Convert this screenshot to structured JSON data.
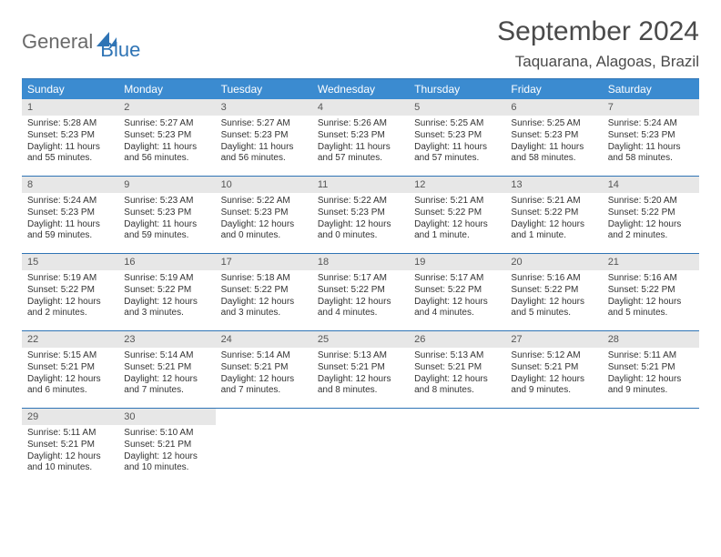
{
  "logo": {
    "word1": "General",
    "word2": "Blue"
  },
  "title": "September 2024",
  "location": "Taquarana, Alagoas, Brazil",
  "colors": {
    "header_bg": "#3b8bd0",
    "border": "#2f74b5",
    "daynum_bg": "#e7e7e7",
    "text": "#333333",
    "logo_gray": "#6a6a6a",
    "logo_blue": "#2f74b5"
  },
  "typography": {
    "title_fontsize": 30,
    "location_fontsize": 17,
    "dow_fontsize": 12,
    "cell_fontsize": 10
  },
  "days_of_week": [
    "Sunday",
    "Monday",
    "Tuesday",
    "Wednesday",
    "Thursday",
    "Friday",
    "Saturday"
  ],
  "weeks": [
    [
      {
        "n": "1",
        "sr": "Sunrise: 5:28 AM",
        "ss": "Sunset: 5:23 PM",
        "d1": "Daylight: 11 hours",
        "d2": "and 55 minutes."
      },
      {
        "n": "2",
        "sr": "Sunrise: 5:27 AM",
        "ss": "Sunset: 5:23 PM",
        "d1": "Daylight: 11 hours",
        "d2": "and 56 minutes."
      },
      {
        "n": "3",
        "sr": "Sunrise: 5:27 AM",
        "ss": "Sunset: 5:23 PM",
        "d1": "Daylight: 11 hours",
        "d2": "and 56 minutes."
      },
      {
        "n": "4",
        "sr": "Sunrise: 5:26 AM",
        "ss": "Sunset: 5:23 PM",
        "d1": "Daylight: 11 hours",
        "d2": "and 57 minutes."
      },
      {
        "n": "5",
        "sr": "Sunrise: 5:25 AM",
        "ss": "Sunset: 5:23 PM",
        "d1": "Daylight: 11 hours",
        "d2": "and 57 minutes."
      },
      {
        "n": "6",
        "sr": "Sunrise: 5:25 AM",
        "ss": "Sunset: 5:23 PM",
        "d1": "Daylight: 11 hours",
        "d2": "and 58 minutes."
      },
      {
        "n": "7",
        "sr": "Sunrise: 5:24 AM",
        "ss": "Sunset: 5:23 PM",
        "d1": "Daylight: 11 hours",
        "d2": "and 58 minutes."
      }
    ],
    [
      {
        "n": "8",
        "sr": "Sunrise: 5:24 AM",
        "ss": "Sunset: 5:23 PM",
        "d1": "Daylight: 11 hours",
        "d2": "and 59 minutes."
      },
      {
        "n": "9",
        "sr": "Sunrise: 5:23 AM",
        "ss": "Sunset: 5:23 PM",
        "d1": "Daylight: 11 hours",
        "d2": "and 59 minutes."
      },
      {
        "n": "10",
        "sr": "Sunrise: 5:22 AM",
        "ss": "Sunset: 5:23 PM",
        "d1": "Daylight: 12 hours",
        "d2": "and 0 minutes."
      },
      {
        "n": "11",
        "sr": "Sunrise: 5:22 AM",
        "ss": "Sunset: 5:23 PM",
        "d1": "Daylight: 12 hours",
        "d2": "and 0 minutes."
      },
      {
        "n": "12",
        "sr": "Sunrise: 5:21 AM",
        "ss": "Sunset: 5:22 PM",
        "d1": "Daylight: 12 hours",
        "d2": "and 1 minute."
      },
      {
        "n": "13",
        "sr": "Sunrise: 5:21 AM",
        "ss": "Sunset: 5:22 PM",
        "d1": "Daylight: 12 hours",
        "d2": "and 1 minute."
      },
      {
        "n": "14",
        "sr": "Sunrise: 5:20 AM",
        "ss": "Sunset: 5:22 PM",
        "d1": "Daylight: 12 hours",
        "d2": "and 2 minutes."
      }
    ],
    [
      {
        "n": "15",
        "sr": "Sunrise: 5:19 AM",
        "ss": "Sunset: 5:22 PM",
        "d1": "Daylight: 12 hours",
        "d2": "and 2 minutes."
      },
      {
        "n": "16",
        "sr": "Sunrise: 5:19 AM",
        "ss": "Sunset: 5:22 PM",
        "d1": "Daylight: 12 hours",
        "d2": "and 3 minutes."
      },
      {
        "n": "17",
        "sr": "Sunrise: 5:18 AM",
        "ss": "Sunset: 5:22 PM",
        "d1": "Daylight: 12 hours",
        "d2": "and 3 minutes."
      },
      {
        "n": "18",
        "sr": "Sunrise: 5:17 AM",
        "ss": "Sunset: 5:22 PM",
        "d1": "Daylight: 12 hours",
        "d2": "and 4 minutes."
      },
      {
        "n": "19",
        "sr": "Sunrise: 5:17 AM",
        "ss": "Sunset: 5:22 PM",
        "d1": "Daylight: 12 hours",
        "d2": "and 4 minutes."
      },
      {
        "n": "20",
        "sr": "Sunrise: 5:16 AM",
        "ss": "Sunset: 5:22 PM",
        "d1": "Daylight: 12 hours",
        "d2": "and 5 minutes."
      },
      {
        "n": "21",
        "sr": "Sunrise: 5:16 AM",
        "ss": "Sunset: 5:22 PM",
        "d1": "Daylight: 12 hours",
        "d2": "and 5 minutes."
      }
    ],
    [
      {
        "n": "22",
        "sr": "Sunrise: 5:15 AM",
        "ss": "Sunset: 5:21 PM",
        "d1": "Daylight: 12 hours",
        "d2": "and 6 minutes."
      },
      {
        "n": "23",
        "sr": "Sunrise: 5:14 AM",
        "ss": "Sunset: 5:21 PM",
        "d1": "Daylight: 12 hours",
        "d2": "and 7 minutes."
      },
      {
        "n": "24",
        "sr": "Sunrise: 5:14 AM",
        "ss": "Sunset: 5:21 PM",
        "d1": "Daylight: 12 hours",
        "d2": "and 7 minutes."
      },
      {
        "n": "25",
        "sr": "Sunrise: 5:13 AM",
        "ss": "Sunset: 5:21 PM",
        "d1": "Daylight: 12 hours",
        "d2": "and 8 minutes."
      },
      {
        "n": "26",
        "sr": "Sunrise: 5:13 AM",
        "ss": "Sunset: 5:21 PM",
        "d1": "Daylight: 12 hours",
        "d2": "and 8 minutes."
      },
      {
        "n": "27",
        "sr": "Sunrise: 5:12 AM",
        "ss": "Sunset: 5:21 PM",
        "d1": "Daylight: 12 hours",
        "d2": "and 9 minutes."
      },
      {
        "n": "28",
        "sr": "Sunrise: 5:11 AM",
        "ss": "Sunset: 5:21 PM",
        "d1": "Daylight: 12 hours",
        "d2": "and 9 minutes."
      }
    ],
    [
      {
        "n": "29",
        "sr": "Sunrise: 5:11 AM",
        "ss": "Sunset: 5:21 PM",
        "d1": "Daylight: 12 hours",
        "d2": "and 10 minutes."
      },
      {
        "n": "30",
        "sr": "Sunrise: 5:10 AM",
        "ss": "Sunset: 5:21 PM",
        "d1": "Daylight: 12 hours",
        "d2": "and 10 minutes."
      },
      {
        "empty": true
      },
      {
        "empty": true
      },
      {
        "empty": true
      },
      {
        "empty": true
      },
      {
        "empty": true
      }
    ]
  ]
}
